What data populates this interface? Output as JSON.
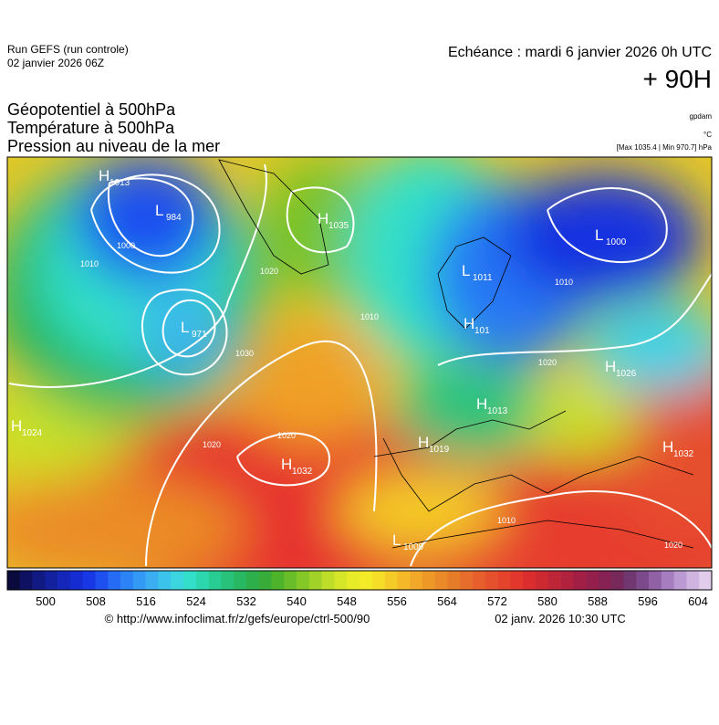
{
  "header": {
    "run": "Run GEFS (run controle)",
    "run_date": "02 janvier 2026 06Z",
    "echeance": "Echéance : mardi 6 janvier 2026 0h UTC",
    "lead": "+ 90H"
  },
  "titles": [
    "Géopotentiel à 500hPa",
    "Température à 500hPa",
    "Pression au niveau de la mer"
  ],
  "units": {
    "geopotential": "gpdam",
    "temperature": "°C",
    "pressure": "[Max 1035.4 | Min 970.7] hPa"
  },
  "centers": [
    {
      "letter": "H",
      "value": "1013"
    },
    {
      "letter": "L",
      "value": "984"
    },
    {
      "letter": "H",
      "value": "1035"
    },
    {
      "letter": "L",
      "value": "1000"
    },
    {
      "letter": "L",
      "value": "1011"
    },
    {
      "letter": "H",
      "value": "101"
    },
    {
      "letter": "L",
      "value": "971"
    },
    {
      "letter": "H",
      "value": "1026"
    },
    {
      "letter": "H",
      "value": "1024"
    },
    {
      "letter": "H",
      "value": "1013"
    },
    {
      "letter": "H",
      "value": "1019"
    },
    {
      "letter": "H",
      "value": "1032"
    },
    {
      "letter": "H",
      "value": "1032"
    },
    {
      "letter": "L",
      "value": "1009"
    }
  ],
  "contour_labels": [
    "1000",
    "1010",
    "1020",
    "1030",
    "1020",
    "1010",
    "1020",
    "1010",
    "1020",
    "1010",
    "1020"
  ],
  "colorbar": {
    "colors": [
      "#0a0a3c",
      "#0f1470",
      "#14209a",
      "#1428c0",
      "#1430e0",
      "#1e50f0",
      "#2878f5",
      "#3296f5",
      "#3cb4f0",
      "#3cd2e6",
      "#32e0c8",
      "#28d2a0",
      "#28c37d",
      "#28b45a",
      "#32aa3c",
      "#50b428",
      "#78c328",
      "#a0d228",
      "#c8e128",
      "#e6eb28",
      "#f5eb28",
      "#f5d228",
      "#f5b928",
      "#f0a028",
      "#eb8c28",
      "#e67828",
      "#e6642d",
      "#e6502d",
      "#e63c2d",
      "#dc2d2d",
      "#c82832",
      "#b4233c",
      "#a01e46",
      "#8c1e50",
      "#78285a",
      "#6e3c78",
      "#8c5aa0",
      "#aa82c3",
      "#c8aadc",
      "#e1cdeb"
    ],
    "ticks": [
      500,
      508,
      516,
      524,
      532,
      540,
      548,
      556,
      564,
      572,
      580,
      588,
      596,
      604
    ]
  },
  "footer": {
    "source": "© http://www.infoclimat.fr/z/gefs/europe/ctrl-500/90",
    "generated": "02 janv. 2026 10:30 UTC"
  }
}
